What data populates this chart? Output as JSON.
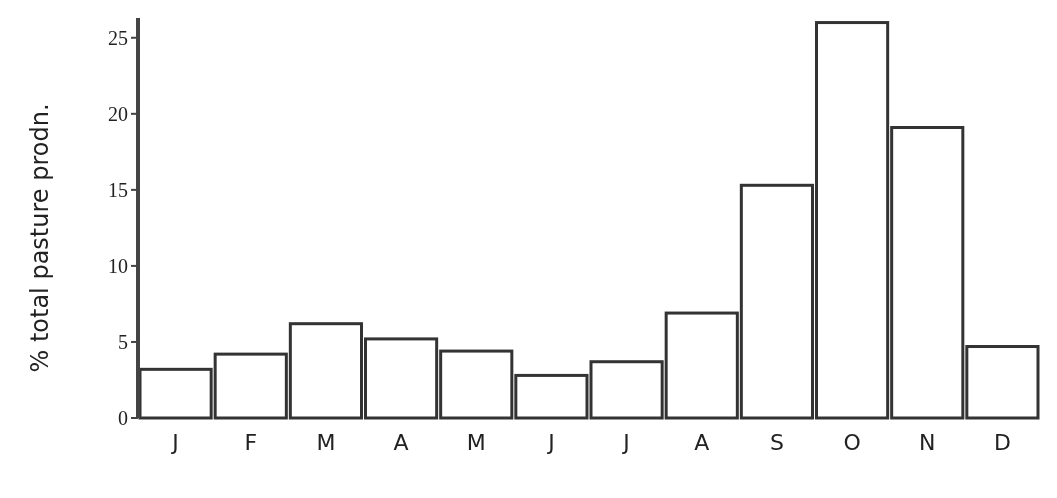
{
  "chart_data": {
    "type": "bar",
    "ylabel": "% total pasture prodn.",
    "categories": [
      "J",
      "F",
      "M",
      "A",
      "M",
      "J",
      "J",
      "A",
      "S",
      "O",
      "N",
      "D"
    ],
    "values": [
      3.2,
      4.2,
      6.2,
      5.2,
      4.4,
      2.8,
      3.7,
      6.9,
      15.3,
      26.0,
      19.1,
      4.7
    ],
    "color": "#ffffff",
    "ylim": [
      0,
      26.3
    ],
    "yticks": [
      0,
      5,
      10,
      15,
      20,
      25
    ],
    "grid": false
  }
}
